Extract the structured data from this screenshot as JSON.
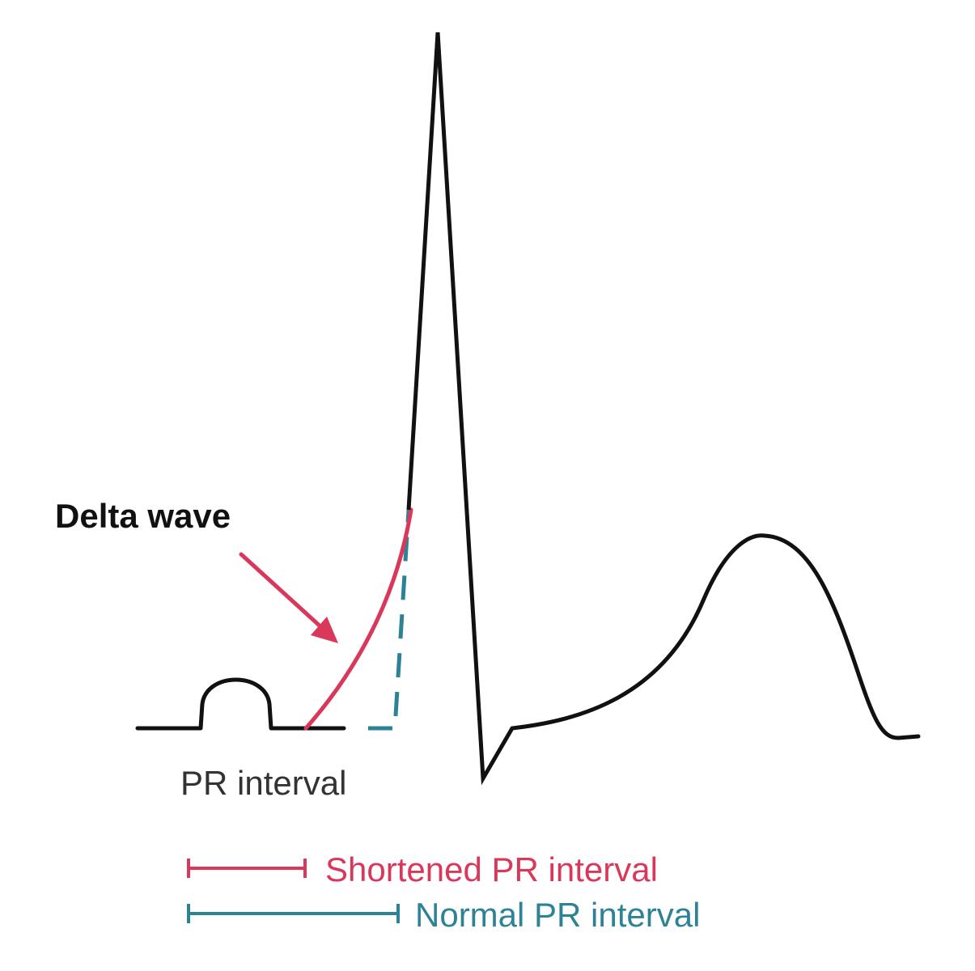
{
  "labels": {
    "delta_wave": "Delta wave",
    "pr_interval": "PR interval",
    "shortened_pr": "Shortened PR interval",
    "normal_pr": "Normal PR interval"
  },
  "colors": {
    "waveform": "#111111",
    "delta": "#d9385a",
    "normal": "#2e8296",
    "label_dark": "#111111",
    "label_muted": "#333333"
  }
}
